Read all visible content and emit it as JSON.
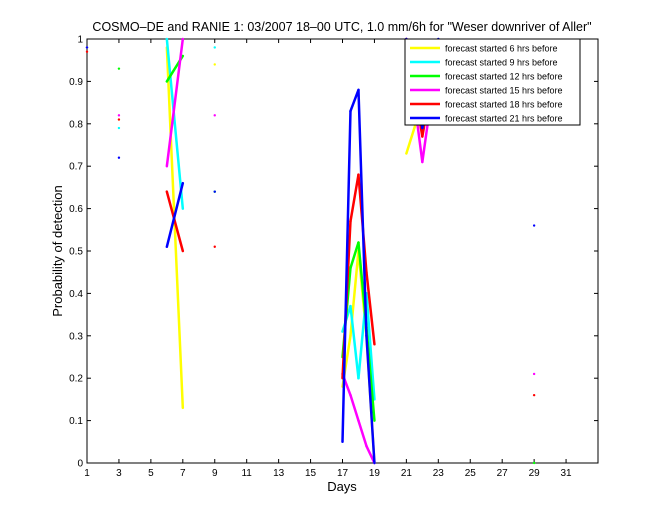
{
  "chart_data": {
    "type": "line",
    "title": "COSMO–DE and RANIE 1: 03/2007 18–00 UTC, 1.0 mm/6h for \"Weser downriver of Aller\"",
    "xlabel": "Days",
    "ylabel": "Probability of detection",
    "xlim": [
      1,
      33
    ],
    "ylim": [
      0,
      1
    ],
    "xticks": [
      1,
      3,
      5,
      7,
      9,
      11,
      13,
      15,
      17,
      19,
      21,
      23,
      25,
      27,
      29,
      31
    ],
    "yticks": [
      0,
      0.1,
      0.2,
      0.3,
      0.4,
      0.5,
      0.6,
      0.7,
      0.8,
      0.9,
      1
    ],
    "ytick_labels": [
      "0",
      "0.1",
      "0.2",
      "0.3",
      "0.4",
      "0.5",
      "0.6",
      "0.7",
      "0.8",
      "0.9",
      "1"
    ],
    "grid": false,
    "legend_position": "top-right",
    "series": [
      {
        "name": "forecast started 6 hrs before",
        "color": "#ffff00",
        "points": [
          [
            1,
            0.98
          ],
          [
            3,
            0.81
          ],
          [
            6,
            0.98
          ],
          [
            7,
            0.13
          ],
          [
            9,
            0.94
          ],
          [
            9,
            0.64
          ],
          [
            17,
            0.18
          ],
          [
            17.5,
            0.3
          ],
          [
            18,
            0.5
          ],
          [
            18.5,
            0.3
          ],
          [
            19,
            0.0
          ],
          [
            21,
            0.73
          ],
          [
            22,
            0.85
          ],
          [
            23,
            0.98
          ]
        ]
      },
      {
        "name": "forecast started 9 hrs before",
        "color": "#00ffff",
        "points": [
          [
            1,
            0.98
          ],
          [
            3,
            0.79
          ],
          [
            6,
            1.0
          ],
          [
            7,
            0.6
          ],
          [
            9,
            0.98
          ],
          [
            9,
            0.64
          ],
          [
            17,
            0.31
          ],
          [
            17.5,
            0.37
          ],
          [
            18,
            0.2
          ],
          [
            18.5,
            0.4
          ],
          [
            19,
            0.15
          ],
          [
            21,
            0.92
          ],
          [
            22,
            0.84
          ],
          [
            23,
            0.98
          ]
        ]
      },
      {
        "name": "forecast started 12 hrs before",
        "color": "#00ff00",
        "points": [
          [
            1,
            0.98
          ],
          [
            3,
            0.93
          ],
          [
            6,
            0.9
          ],
          [
            7,
            0.96
          ],
          [
            9,
            0.64
          ],
          [
            17,
            0.25
          ],
          [
            17.5,
            0.46
          ],
          [
            18,
            0.52
          ],
          [
            18.5,
            0.32
          ],
          [
            19,
            0.1
          ],
          [
            21,
            0.86
          ],
          [
            22,
            0.82
          ],
          [
            23,
            0.99
          ],
          [
            29,
            0.0
          ]
        ]
      },
      {
        "name": "forecast started 15 hrs before",
        "color": "#ff00ff",
        "points": [
          [
            1,
            0.98
          ],
          [
            3,
            0.82
          ],
          [
            6,
            0.7
          ],
          [
            7,
            1.0
          ],
          [
            9,
            0.82
          ],
          [
            17,
            0.21
          ],
          [
            17.5,
            0.16
          ],
          [
            18,
            0.1
          ],
          [
            18.5,
            0.04
          ],
          [
            19,
            0.0
          ],
          [
            21,
            1.0
          ],
          [
            22,
            0.71
          ],
          [
            23,
            0.98
          ],
          [
            29,
            0.21
          ]
        ]
      },
      {
        "name": "forecast started 18 hrs before",
        "color": "#ff0000",
        "points": [
          [
            1,
            0.97
          ],
          [
            3,
            0.81
          ],
          [
            6,
            0.64
          ],
          [
            7,
            0.5
          ],
          [
            9,
            0.51
          ],
          [
            17,
            0.2
          ],
          [
            17.5,
            0.57
          ],
          [
            18,
            0.68
          ],
          [
            18.5,
            0.45
          ],
          [
            19,
            0.28
          ],
          [
            21,
            1.0
          ],
          [
            22,
            0.77
          ],
          [
            23,
            0.99
          ],
          [
            29,
            0.16
          ]
        ]
      },
      {
        "name": "forecast started 21 hrs before",
        "color": "#0000ff",
        "points": [
          [
            1,
            0.98
          ],
          [
            3,
            0.72
          ],
          [
            6,
            0.51
          ],
          [
            7,
            0.66
          ],
          [
            9,
            0.64
          ],
          [
            17,
            0.05
          ],
          [
            17.5,
            0.83
          ],
          [
            18,
            0.88
          ],
          [
            18.5,
            0.3
          ],
          [
            19,
            0.0
          ],
          [
            21,
            1.0
          ],
          [
            22,
            0.79
          ],
          [
            23,
            1.0
          ],
          [
            29,
            0.56
          ]
        ]
      }
    ]
  }
}
